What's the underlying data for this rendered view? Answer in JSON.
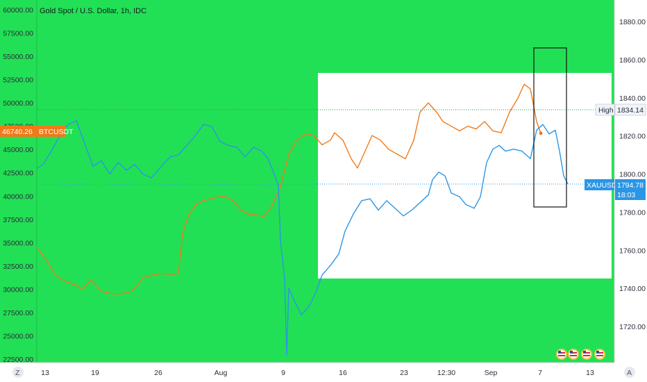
{
  "header": {
    "title": "Gold Spot / U.S. Dollar, 1h, IDC"
  },
  "colors": {
    "background": "#22e055",
    "btc": "#f07a1a",
    "xau": "#2b96e6",
    "box": "#ffffff",
    "frame": "#111111"
  },
  "chart_data": {
    "type": "line",
    "title": "Gold Spot / U.S. Dollar, 1h, IDC",
    "x_ticks": [
      "13",
      "19",
      "26",
      "Aug",
      "9",
      "16",
      "23",
      "12:30",
      "Sep",
      "7",
      "13"
    ],
    "left_axis": {
      "ticks": [
        "60000.00",
        "57500.00",
        "55000.00",
        "52500.00",
        "50000.00",
        "47500.00",
        "45000.00",
        "42500.00",
        "40000.00",
        "37500.00",
        "35000.00",
        "32500.00",
        "30000.00",
        "27500.00",
        "25000.00",
        "22500.00"
      ],
      "range": [
        22500,
        60000
      ]
    },
    "right_axis": {
      "ticks": [
        "1880.00",
        "1860.00",
        "1840.00",
        "1820.00",
        "1800.00",
        "1780.00",
        "1760.00",
        "1740.00",
        "1720.00"
      ],
      "range": [
        1720,
        1880
      ]
    },
    "series": [
      {
        "name": "BTCUSDT",
        "axis": "left",
        "last_value": "46740.26",
        "points": [
          [
            0,
            34500
          ],
          [
            5,
            33000
          ],
          [
            9,
            31500
          ],
          [
            14,
            30800
          ],
          [
            18,
            30500
          ],
          [
            22,
            30000
          ],
          [
            26,
            31000
          ],
          [
            31,
            29800
          ],
          [
            36,
            29500
          ],
          [
            41,
            29500
          ],
          [
            46,
            29800
          ],
          [
            51,
            31200
          ],
          [
            55,
            31500
          ],
          [
            60,
            31700
          ],
          [
            64,
            31600
          ],
          [
            68,
            31700
          ],
          [
            70,
            36000
          ],
          [
            73,
            38000
          ],
          [
            76,
            39000
          ],
          [
            80,
            39500
          ],
          [
            85,
            39800
          ],
          [
            90,
            40000
          ],
          [
            94,
            39500
          ],
          [
            98,
            38500
          ],
          [
            102,
            38000
          ],
          [
            105,
            38000
          ],
          [
            109,
            37800
          ],
          [
            113,
            39000
          ],
          [
            117,
            41000
          ],
          [
            121,
            44500
          ],
          [
            125,
            46000
          ],
          [
            129,
            46700
          ],
          [
            133,
            46500
          ],
          [
            137,
            45500
          ],
          [
            141,
            46000
          ],
          [
            143,
            46800
          ],
          [
            147,
            46000
          ],
          [
            151,
            44000
          ],
          [
            154,
            43000
          ],
          [
            157,
            44500
          ],
          [
            161,
            46500
          ],
          [
            165,
            46000
          ],
          [
            169,
            45000
          ],
          [
            173,
            44500
          ],
          [
            177,
            44000
          ],
          [
            181,
            46000
          ],
          [
            184,
            49000
          ],
          [
            188,
            50000
          ],
          [
            192,
            49000
          ],
          [
            195,
            48000
          ],
          [
            199,
            47500
          ],
          [
            203,
            47000
          ],
          [
            207,
            47500
          ],
          [
            211,
            47200
          ],
          [
            215,
            48000
          ],
          [
            219,
            47000
          ],
          [
            223,
            46800
          ],
          [
            227,
            49000
          ],
          [
            231,
            50500
          ],
          [
            234,
            52000
          ],
          [
            237,
            51500
          ],
          [
            240,
            48000
          ],
          [
            242,
            46740
          ]
        ]
      },
      {
        "name": "XAUUSD",
        "axis": "right",
        "last_value": "1794.78",
        "countdown": "18:03",
        "points": [
          [
            0,
            1803
          ],
          [
            3,
            1805
          ],
          [
            7,
            1812
          ],
          [
            11,
            1820
          ],
          [
            15,
            1826
          ],
          [
            19,
            1828
          ],
          [
            23,
            1816
          ],
          [
            27,
            1804
          ],
          [
            31,
            1807
          ],
          [
            35,
            1800
          ],
          [
            39,
            1806
          ],
          [
            43,
            1802
          ],
          [
            47,
            1805
          ],
          [
            51,
            1800
          ],
          [
            55,
            1798
          ],
          [
            59,
            1803
          ],
          [
            64,
            1809
          ],
          [
            68,
            1810
          ],
          [
            72,
            1815
          ],
          [
            76,
            1820
          ],
          [
            80,
            1826
          ],
          [
            84,
            1825
          ],
          [
            88,
            1817
          ],
          [
            92,
            1815
          ],
          [
            96,
            1814
          ],
          [
            100,
            1809
          ],
          [
            104,
            1814
          ],
          [
            108,
            1812
          ],
          [
            111,
            1808
          ],
          [
            114,
            1800
          ],
          [
            116,
            1794
          ],
          [
            117,
            1765
          ],
          [
            119,
            1745
          ],
          [
            120,
            1705
          ],
          [
            121,
            1740
          ],
          [
            123,
            1735
          ],
          [
            127,
            1726
          ],
          [
            131,
            1731
          ],
          [
            134,
            1738
          ],
          [
            137,
            1747
          ],
          [
            141,
            1752
          ],
          [
            145,
            1758
          ],
          [
            148,
            1770
          ],
          [
            152,
            1779
          ],
          [
            156,
            1786
          ],
          [
            160,
            1787
          ],
          [
            164,
            1781
          ],
          [
            168,
            1786
          ],
          [
            172,
            1782
          ],
          [
            176,
            1778
          ],
          [
            180,
            1781
          ],
          [
            184,
            1785
          ],
          [
            188,
            1789
          ],
          [
            190,
            1797
          ],
          [
            193,
            1801
          ],
          [
            196,
            1799
          ],
          [
            199,
            1790
          ],
          [
            203,
            1788
          ],
          [
            206,
            1784
          ],
          [
            210,
            1782
          ],
          [
            213,
            1788
          ],
          [
            216,
            1806
          ],
          [
            219,
            1813
          ],
          [
            222,
            1815
          ],
          [
            225,
            1812
          ],
          [
            229,
            1813
          ],
          [
            233,
            1812
          ],
          [
            237,
            1808
          ],
          [
            240,
            1823
          ],
          [
            243,
            1826
          ],
          [
            246,
            1821
          ],
          [
            249,
            1823
          ],
          [
            251,
            1812
          ],
          [
            253,
            1799
          ],
          [
            255,
            1794.78
          ]
        ]
      }
    ],
    "annotations": [
      {
        "label": "High",
        "value": "1834.14"
      }
    ],
    "scale_buttons": [
      "Z",
      "A"
    ]
  }
}
